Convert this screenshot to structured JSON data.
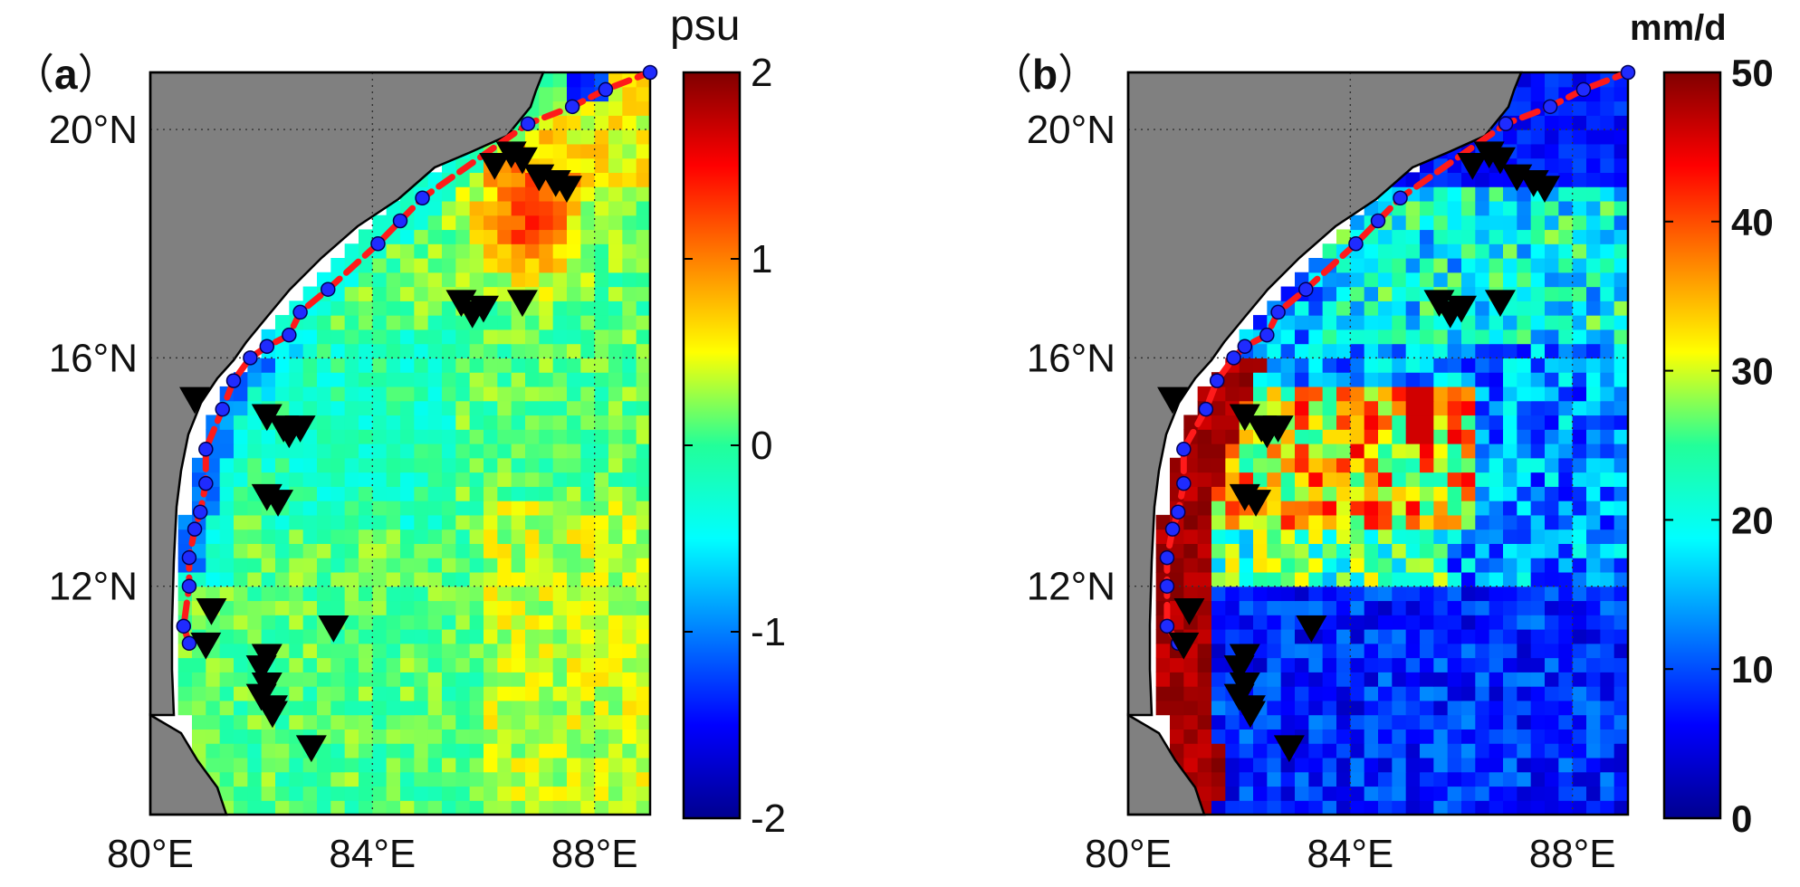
{
  "chart_data": [
    {
      "type": "heatmap",
      "panel_label": "a",
      "colorbar_unit": "psu",
      "colorbar_range": [
        -2,
        2
      ],
      "colorbar_ticks": [
        "2",
        "1",
        "0",
        "-1",
        "-2"
      ],
      "colormap": "jet",
      "xlim": [
        80,
        89
      ],
      "ylim": [
        8,
        21
      ],
      "x_ticks": [
        80,
        84,
        88
      ],
      "x_tick_labels": [
        "80°E",
        "84°E",
        "88°E"
      ],
      "y_ticks": [
        12,
        16,
        20
      ],
      "y_tick_labels": [
        "12°N",
        "16°N",
        "20°N"
      ],
      "grid": "dotted",
      "track": [
        [
          80.7,
          11.0
        ],
        [
          80.6,
          11.3
        ],
        [
          80.7,
          12.0
        ],
        [
          80.7,
          12.5
        ],
        [
          80.8,
          13.0
        ],
        [
          80.9,
          13.3
        ],
        [
          81.0,
          13.8
        ],
        [
          81.0,
          14.4
        ],
        [
          81.3,
          15.1
        ],
        [
          81.5,
          15.6
        ],
        [
          81.8,
          16.0
        ],
        [
          82.1,
          16.2
        ],
        [
          82.5,
          16.4
        ],
        [
          82.7,
          16.8
        ],
        [
          83.2,
          17.2
        ],
        [
          84.1,
          18.0
        ],
        [
          84.5,
          18.4
        ],
        [
          84.9,
          18.8
        ],
        [
          86.8,
          20.1
        ],
        [
          87.6,
          20.4
        ],
        [
          88.2,
          20.7
        ],
        [
          89.0,
          21.0
        ]
      ],
      "markers": [
        [
          80.8,
          15.3
        ],
        [
          82.1,
          15.0
        ],
        [
          82.4,
          14.8
        ],
        [
          82.5,
          14.7
        ],
        [
          82.7,
          14.8
        ],
        [
          82.1,
          13.6
        ],
        [
          82.3,
          13.5
        ],
        [
          81.1,
          11.6
        ],
        [
          81.0,
          11.0
        ],
        [
          82.1,
          10.8
        ],
        [
          82.0,
          10.6
        ],
        [
          82.1,
          10.3
        ],
        [
          82.0,
          10.1
        ],
        [
          82.2,
          9.8
        ],
        [
          82.2,
          9.9
        ],
        [
          83.3,
          11.3
        ],
        [
          82.9,
          9.2
        ],
        [
          85.6,
          17.0
        ],
        [
          85.8,
          16.8
        ],
        [
          86.0,
          16.9
        ],
        [
          86.7,
          17.0
        ],
        [
          86.2,
          19.4
        ],
        [
          86.5,
          19.6
        ],
        [
          86.7,
          19.5
        ],
        [
          87.0,
          19.2
        ],
        [
          87.3,
          19.1
        ],
        [
          87.5,
          19.0
        ]
      ]
    },
    {
      "type": "heatmap",
      "panel_label": "b",
      "colorbar_unit": "mm/d",
      "colorbar_range": [
        0,
        50
      ],
      "colorbar_ticks": [
        "50",
        "40",
        "30",
        "20",
        "10",
        "0"
      ],
      "colormap": "jet",
      "xlim": [
        80,
        89
      ],
      "ylim": [
        8,
        21
      ],
      "x_ticks": [
        80,
        84,
        88
      ],
      "x_tick_labels": [
        "80°E",
        "84°E",
        "88°E"
      ],
      "y_ticks": [
        12,
        16,
        20
      ],
      "y_tick_labels": [
        "12°N",
        "16°N",
        "20°N"
      ],
      "grid": "dotted",
      "track": [
        [
          80.9,
          11.0
        ],
        [
          80.7,
          11.3
        ],
        [
          80.7,
          12.0
        ],
        [
          80.7,
          12.5
        ],
        [
          80.8,
          13.0
        ],
        [
          80.9,
          13.3
        ],
        [
          81.0,
          13.8
        ],
        [
          81.0,
          14.4
        ],
        [
          81.4,
          15.1
        ],
        [
          81.6,
          15.6
        ],
        [
          81.9,
          16.0
        ],
        [
          82.1,
          16.2
        ],
        [
          82.5,
          16.4
        ],
        [
          82.7,
          16.8
        ],
        [
          83.2,
          17.2
        ],
        [
          84.1,
          18.0
        ],
        [
          84.5,
          18.4
        ],
        [
          84.9,
          18.8
        ],
        [
          86.8,
          20.1
        ],
        [
          87.6,
          20.4
        ],
        [
          88.2,
          20.7
        ],
        [
          89.0,
          21.0
        ]
      ],
      "markers": [
        [
          80.8,
          15.3
        ],
        [
          82.1,
          15.0
        ],
        [
          82.4,
          14.8
        ],
        [
          82.5,
          14.7
        ],
        [
          82.7,
          14.8
        ],
        [
          82.1,
          13.6
        ],
        [
          82.3,
          13.5
        ],
        [
          81.1,
          11.6
        ],
        [
          81.0,
          11.0
        ],
        [
          82.1,
          10.8
        ],
        [
          82.0,
          10.6
        ],
        [
          82.1,
          10.3
        ],
        [
          82.0,
          10.1
        ],
        [
          82.2,
          9.8
        ],
        [
          82.2,
          9.9
        ],
        [
          83.3,
          11.3
        ],
        [
          82.9,
          9.2
        ],
        [
          85.6,
          17.0
        ],
        [
          85.8,
          16.8
        ],
        [
          86.0,
          16.9
        ],
        [
          86.7,
          17.0
        ],
        [
          86.2,
          19.4
        ],
        [
          86.5,
          19.6
        ],
        [
          86.7,
          19.5
        ],
        [
          87.0,
          19.2
        ],
        [
          87.3,
          19.1
        ],
        [
          87.5,
          19.0
        ]
      ]
    }
  ]
}
